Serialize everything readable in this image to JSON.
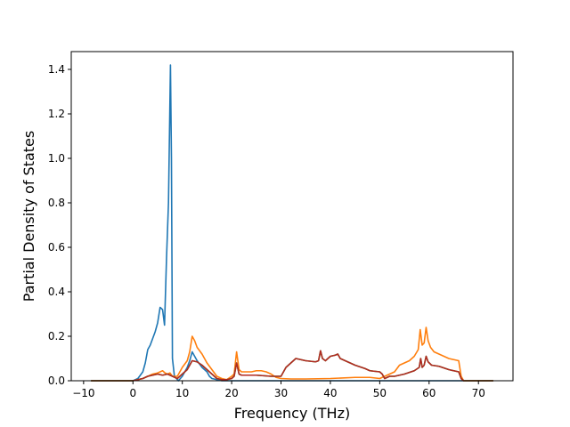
{
  "chart_data": {
    "type": "line",
    "title": "",
    "xlabel": "Frequency (THz)",
    "ylabel": "Partial Density of States",
    "xlim": [
      -12.5,
      77
    ],
    "ylim": [
      0,
      1.48
    ],
    "xticks": [
      -10,
      0,
      10,
      20,
      30,
      40,
      50,
      60,
      70
    ],
    "xtick_labels": [
      "−10",
      "0",
      "10",
      "20",
      "30",
      "40",
      "50",
      "60",
      "70"
    ],
    "yticks": [
      0.0,
      0.2,
      0.4,
      0.6,
      0.8,
      1.0,
      1.2,
      1.4
    ],
    "ytick_labels": [
      "0.0",
      "0.2",
      "0.4",
      "0.6",
      "0.8",
      "1.0",
      "1.2",
      "1.4"
    ],
    "grid": false,
    "legend": "none",
    "series": [
      {
        "color": "#1f77b4",
        "x": [
          -8.5,
          0,
          1,
          2,
          2.5,
          3,
          3.5,
          4,
          4.5,
          5,
          5.5,
          6,
          6.4,
          6.8,
          7.2,
          7.6,
          7.8,
          8.0,
          8.4,
          8.8,
          9.2,
          10,
          11,
          11.5,
          12,
          12.5,
          13,
          14,
          15,
          15.5,
          16,
          17,
          18,
          19,
          20,
          21,
          22,
          25,
          30,
          40,
          50,
          60,
          66,
          68,
          73
        ],
        "y": [
          0,
          0,
          0.01,
          0.04,
          0.08,
          0.14,
          0.16,
          0.19,
          0.22,
          0.26,
          0.33,
          0.32,
          0.25,
          0.55,
          0.8,
          1.42,
          1.0,
          0.1,
          0.02,
          0.01,
          0,
          0.02,
          0.06,
          0.09,
          0.13,
          0.11,
          0.09,
          0.06,
          0.04,
          0.02,
          0.01,
          0.005,
          0,
          0,
          0,
          0,
          0,
          0,
          0,
          0,
          0,
          0,
          0,
          0,
          0
        ]
      },
      {
        "color": "#ff7f0e",
        "x": [
          -8.5,
          0,
          1,
          2,
          3,
          4,
          5,
          5.5,
          6,
          6.5,
          7,
          7.5,
          8,
          9,
          10,
          11,
          11.5,
          12,
          12.5,
          13,
          14,
          15,
          16,
          17,
          18,
          19,
          20,
          20.5,
          21,
          21.5,
          22,
          23,
          24,
          25,
          26,
          27,
          28,
          29,
          30,
          32,
          35,
          40,
          45,
          48,
          50,
          51,
          52,
          53,
          54,
          55,
          56,
          57,
          57.8,
          58.2,
          58.6,
          59,
          59.4,
          59.8,
          60.3,
          61,
          62,
          63,
          64,
          65,
          66,
          66.5,
          67,
          68,
          73
        ],
        "y": [
          0,
          0,
          0.005,
          0.01,
          0.02,
          0.03,
          0.035,
          0.04,
          0.045,
          0.035,
          0.03,
          0.035,
          0.02,
          0.02,
          0.06,
          0.09,
          0.13,
          0.2,
          0.18,
          0.15,
          0.12,
          0.08,
          0.05,
          0.02,
          0.01,
          0.005,
          0.02,
          0.03,
          0.13,
          0.05,
          0.04,
          0.04,
          0.04,
          0.045,
          0.045,
          0.04,
          0.03,
          0.015,
          0.01,
          0.008,
          0.008,
          0.01,
          0.015,
          0.015,
          0.01,
          0.02,
          0.03,
          0.04,
          0.07,
          0.08,
          0.09,
          0.11,
          0.14,
          0.23,
          0.16,
          0.17,
          0.24,
          0.18,
          0.15,
          0.13,
          0.12,
          0.11,
          0.1,
          0.095,
          0.09,
          0.02,
          0,
          0,
          0
        ]
      },
      {
        "color": "#2ca02c",
        "x": [
          -8.5,
          0,
          1,
          2,
          3,
          4,
          5,
          6,
          7,
          8,
          9,
          10,
          11,
          12,
          13,
          14,
          15,
          16,
          17,
          18,
          19,
          20,
          20.5,
          21,
          21.5,
          22,
          25,
          28,
          30,
          31,
          32,
          33,
          35,
          37,
          37.6,
          38,
          38.4,
          39,
          40,
          41,
          41.5,
          42,
          43,
          45,
          47,
          48,
          50,
          50.5,
          51,
          52,
          53,
          55,
          57,
          58,
          58.3,
          58.6,
          59,
          59.4,
          59.8,
          60.5,
          62,
          64,
          66,
          66.5,
          67,
          73
        ],
        "y": [
          0,
          0,
          0.005,
          0.01,
          0.02,
          0.025,
          0.03,
          0.025,
          0.03,
          0.02,
          0.01,
          0.03,
          0.05,
          0.09,
          0.085,
          0.07,
          0.05,
          0.03,
          0.01,
          0.005,
          0.005,
          0.01,
          0.02,
          0.08,
          0.03,
          0.025,
          0.025,
          0.02,
          0.02,
          0.06,
          0.08,
          0.1,
          0.09,
          0.085,
          0.09,
          0.135,
          0.1,
          0.09,
          0.11,
          0.115,
          0.12,
          0.1,
          0.09,
          0.07,
          0.055,
          0.045,
          0.04,
          0.03,
          0.01,
          0.02,
          0.02,
          0.03,
          0.045,
          0.06,
          0.1,
          0.06,
          0.07,
          0.11,
          0.085,
          0.07,
          0.065,
          0.05,
          0.04,
          0.01,
          0,
          0
        ]
      },
      {
        "color": "#b22a22",
        "x": [
          -8.5,
          0,
          1,
          2,
          3,
          4,
          5,
          6,
          7,
          8,
          9,
          10,
          11,
          12,
          13,
          14,
          15,
          16,
          17,
          18,
          19,
          20,
          20.5,
          21,
          21.5,
          22,
          25,
          28,
          30,
          31,
          32,
          33,
          35,
          37,
          37.6,
          38,
          38.4,
          39,
          40,
          41,
          41.5,
          42,
          43,
          45,
          47,
          48,
          50,
          50.5,
          51,
          52,
          53,
          55,
          57,
          58,
          58.3,
          58.6,
          59,
          59.4,
          59.8,
          60.5,
          62,
          64,
          66,
          66.5,
          67,
          73
        ],
        "y": [
          0,
          0,
          0.005,
          0.01,
          0.02,
          0.025,
          0.03,
          0.025,
          0.03,
          0.02,
          0.01,
          0.03,
          0.05,
          0.09,
          0.085,
          0.07,
          0.05,
          0.03,
          0.01,
          0.005,
          0.005,
          0.01,
          0.02,
          0.08,
          0.03,
          0.025,
          0.025,
          0.02,
          0.02,
          0.06,
          0.08,
          0.1,
          0.09,
          0.085,
          0.09,
          0.135,
          0.1,
          0.09,
          0.11,
          0.115,
          0.12,
          0.1,
          0.09,
          0.07,
          0.055,
          0.045,
          0.04,
          0.03,
          0.01,
          0.02,
          0.02,
          0.03,
          0.045,
          0.06,
          0.1,
          0.06,
          0.07,
          0.11,
          0.085,
          0.07,
          0.065,
          0.05,
          0.04,
          0.01,
          0,
          0
        ]
      }
    ]
  }
}
